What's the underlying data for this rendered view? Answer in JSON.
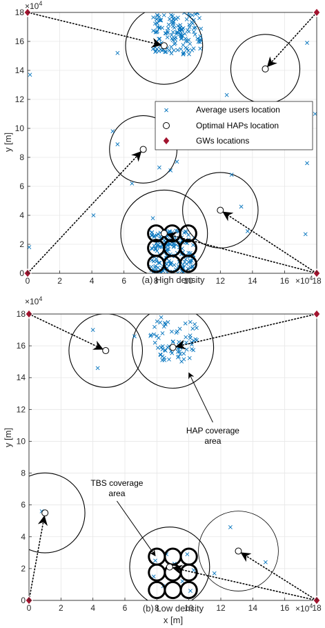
{
  "chart_data": [
    {
      "type": "scatter",
      "caption": "(a) High density",
      "ylabel": "y [m]",
      "xlabel": "",
      "x_exponent": "×10",
      "y_exponent": "×10",
      "exponent_power": "4",
      "xlim": [
        0,
        180000
      ],
      "ylim": [
        0,
        180000
      ],
      "xticks": [
        "0",
        "2",
        "4",
        "6",
        "8",
        "10",
        "12",
        "14",
        "16",
        "18"
      ],
      "yticks": [
        "0",
        "2",
        "4",
        "6",
        "8",
        "10",
        "12",
        "14",
        "16",
        "18"
      ],
      "grid": true,
      "legend_position": "upper-right",
      "legend": [
        "Average users location",
        "Optimal HAPs location",
        "GWs locations"
      ],
      "colors": {
        "users": "#0072BD",
        "gw": "#A2142F",
        "hap": "#000000"
      },
      "gateways": [
        [
          0,
          0
        ],
        [
          0,
          180000
        ],
        [
          180000,
          180000
        ],
        [
          180000,
          0
        ]
      ],
      "haps": [
        {
          "x": 85000,
          "y": 157000,
          "r": 24000
        },
        {
          "x": 148000,
          "y": 141000,
          "r": 21500
        },
        {
          "x": 72000,
          "y": 85500,
          "r": 21000
        },
        {
          "x": 120000,
          "y": 43500,
          "r": 23500
        },
        {
          "x": 85000,
          "y": 27500,
          "r": 27000
        }
      ],
      "tbs": {
        "xs": [
          80000,
          90000,
          100000
        ],
        "ys": [
          6500,
          17500,
          27500
        ],
        "r": 5000
      },
      "links": [
        {
          "from": [
            0,
            180000
          ],
          "to": [
            85000,
            157000
          ]
        },
        {
          "from": [
            180000,
            180000
          ],
          "to": [
            148000,
            141000
          ]
        },
        {
          "from": [
            0,
            0
          ],
          "to": [
            72000,
            85500
          ]
        },
        {
          "from": [
            180000,
            0
          ],
          "to": [
            120000,
            43500
          ]
        },
        {
          "from": [
            180000,
            0
          ],
          "to": [
            85000,
            27500
          ]
        }
      ],
      "users_sparse": [
        [
          1000,
          18000
        ],
        [
          1500,
          137000
        ],
        [
          41000,
          40000
        ],
        [
          53000,
          98000
        ],
        [
          56000,
          89000
        ],
        [
          65000,
          62000
        ],
        [
          78000,
          38000
        ],
        [
          82000,
          73000
        ],
        [
          89000,
          71000
        ],
        [
          93000,
          77000
        ],
        [
          103000,
          10000
        ],
        [
          104000,
          24000
        ],
        [
          127000,
          68000
        ],
        [
          124000,
          123000
        ],
        [
          133000,
          46000
        ],
        [
          137000,
          29000
        ],
        [
          56000,
          152000
        ],
        [
          174000,
          159000
        ],
        [
          174000,
          76000
        ],
        [
          173000,
          27000
        ],
        [
          179000,
          110000
        ]
      ],
      "user_clusters": [
        {
          "xmin": 78000,
          "xmax": 108000,
          "ymin": 151000,
          "ymax": 180000,
          "n": 140
        },
        {
          "xmin": 77000,
          "xmax": 104000,
          "ymin": 0,
          "ymax": 30000,
          "n": 170
        }
      ]
    },
    {
      "type": "scatter",
      "caption": "(b) Low density",
      "xlabel": "x [m]",
      "ylabel": "y [m]",
      "x_exponent": "×10",
      "y_exponent": "×10",
      "exponent_power": "4",
      "xlim": [
        0,
        180000
      ],
      "ylim": [
        0,
        180000
      ],
      "xticks": [
        "0",
        "2",
        "4",
        "6",
        "8",
        "10",
        "12",
        "14",
        "16",
        "18"
      ],
      "yticks": [
        "0",
        "2",
        "4",
        "6",
        "8",
        "10",
        "12",
        "14",
        "16",
        "18"
      ],
      "grid": true,
      "colors": {
        "users": "#0072BD",
        "gw": "#A2142F",
        "hap": "#000000"
      },
      "gateways": [
        [
          0,
          0
        ],
        [
          0,
          180000
        ],
        [
          180000,
          180000
        ],
        [
          180000,
          0
        ]
      ],
      "haps": [
        {
          "x": 48000,
          "y": 157000,
          "r": 23000
        },
        {
          "x": 90000,
          "y": 159000,
          "r": 25500
        },
        {
          "x": 10000,
          "y": 55000,
          "r": 25000
        },
        {
          "x": 131000,
          "y": 31000,
          "r": 25000
        },
        {
          "x": 88000,
          "y": 21000,
          "r": 25000
        }
      ],
      "tbs": {
        "xs": [
          80000,
          90000,
          100000
        ],
        "ys": [
          6500,
          17500,
          27500
        ],
        "r": 5000
      },
      "links": [
        {
          "from": [
            0,
            180000
          ],
          "to": [
            48000,
            157000
          ]
        },
        {
          "from": [
            180000,
            180000
          ],
          "to": [
            90000,
            159000
          ]
        },
        {
          "from": [
            0,
            0
          ],
          "to": [
            10000,
            55000
          ]
        },
        {
          "from": [
            180000,
            0
          ],
          "to": [
            131000,
            31000
          ]
        },
        {
          "from": [
            180000,
            0
          ],
          "to": [
            88000,
            21000
          ]
        }
      ],
      "users_sparse": [
        [
          40000,
          170000
        ],
        [
          43000,
          146000
        ],
        [
          66000,
          166000
        ],
        [
          126000,
          46000
        ],
        [
          148000,
          24000
        ],
        [
          116000,
          17000
        ],
        [
          8000,
          56000
        ],
        [
          79000,
          25000
        ],
        [
          84000,
          9000
        ],
        [
          91000,
          23000
        ],
        [
          96000,
          12000
        ],
        [
          99000,
          29000
        ],
        [
          101000,
          6000
        ],
        [
          103000,
          19000
        ],
        [
          86000,
          29000
        ],
        [
          78000,
          15000
        ]
      ],
      "user_clusters": [
        {
          "xmin": 76000,
          "xmax": 106000,
          "ymin": 150000,
          "ymax": 178000,
          "n": 70
        }
      ],
      "annotations": [
        {
          "lines": [
            "HAP coverage",
            "area"
          ],
          "text_at": [
            115000,
            105000
          ],
          "arrow_to": [
            100000,
            143000
          ]
        },
        {
          "lines": [
            "TBS coverage",
            "area"
          ],
          "text_at": [
            55000,
            72000
          ],
          "arrow_to": [
            79000,
            28000
          ]
        }
      ]
    }
  ]
}
